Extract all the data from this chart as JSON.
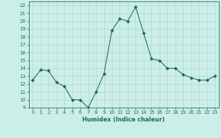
{
  "x": [
    0,
    1,
    2,
    3,
    4,
    5,
    6,
    7,
    8,
    9,
    10,
    11,
    12,
    13,
    14,
    15,
    16,
    17,
    18,
    19,
    20,
    21,
    22,
    23
  ],
  "y": [
    12.5,
    13.8,
    13.7,
    12.2,
    11.7,
    10.0,
    10.0,
    9.0,
    11.0,
    13.3,
    18.8,
    20.3,
    20.0,
    21.8,
    18.5,
    15.2,
    15.0,
    14.0,
    14.0,
    13.2,
    12.8,
    12.5,
    12.5,
    13.0
  ],
  "xlabel": "Humidex (Indice chaleur)",
  "ylim": [
    9,
    22.5
  ],
  "xlim": [
    -0.5,
    23.5
  ],
  "yticks": [
    9,
    10,
    11,
    12,
    13,
    14,
    15,
    16,
    17,
    18,
    19,
    20,
    21,
    22
  ],
  "xticks": [
    0,
    1,
    2,
    3,
    4,
    5,
    6,
    7,
    8,
    9,
    10,
    11,
    12,
    13,
    14,
    15,
    16,
    17,
    18,
    19,
    20,
    21,
    22,
    23
  ],
  "line_color": "#1a6b5a",
  "marker": "D",
  "marker_size": 2.2,
  "bg_color": "#cceee8",
  "grid_color": "#b0d8cc",
  "xlabel_fontsize": 6.0,
  "tick_fontsize": 5.0
}
